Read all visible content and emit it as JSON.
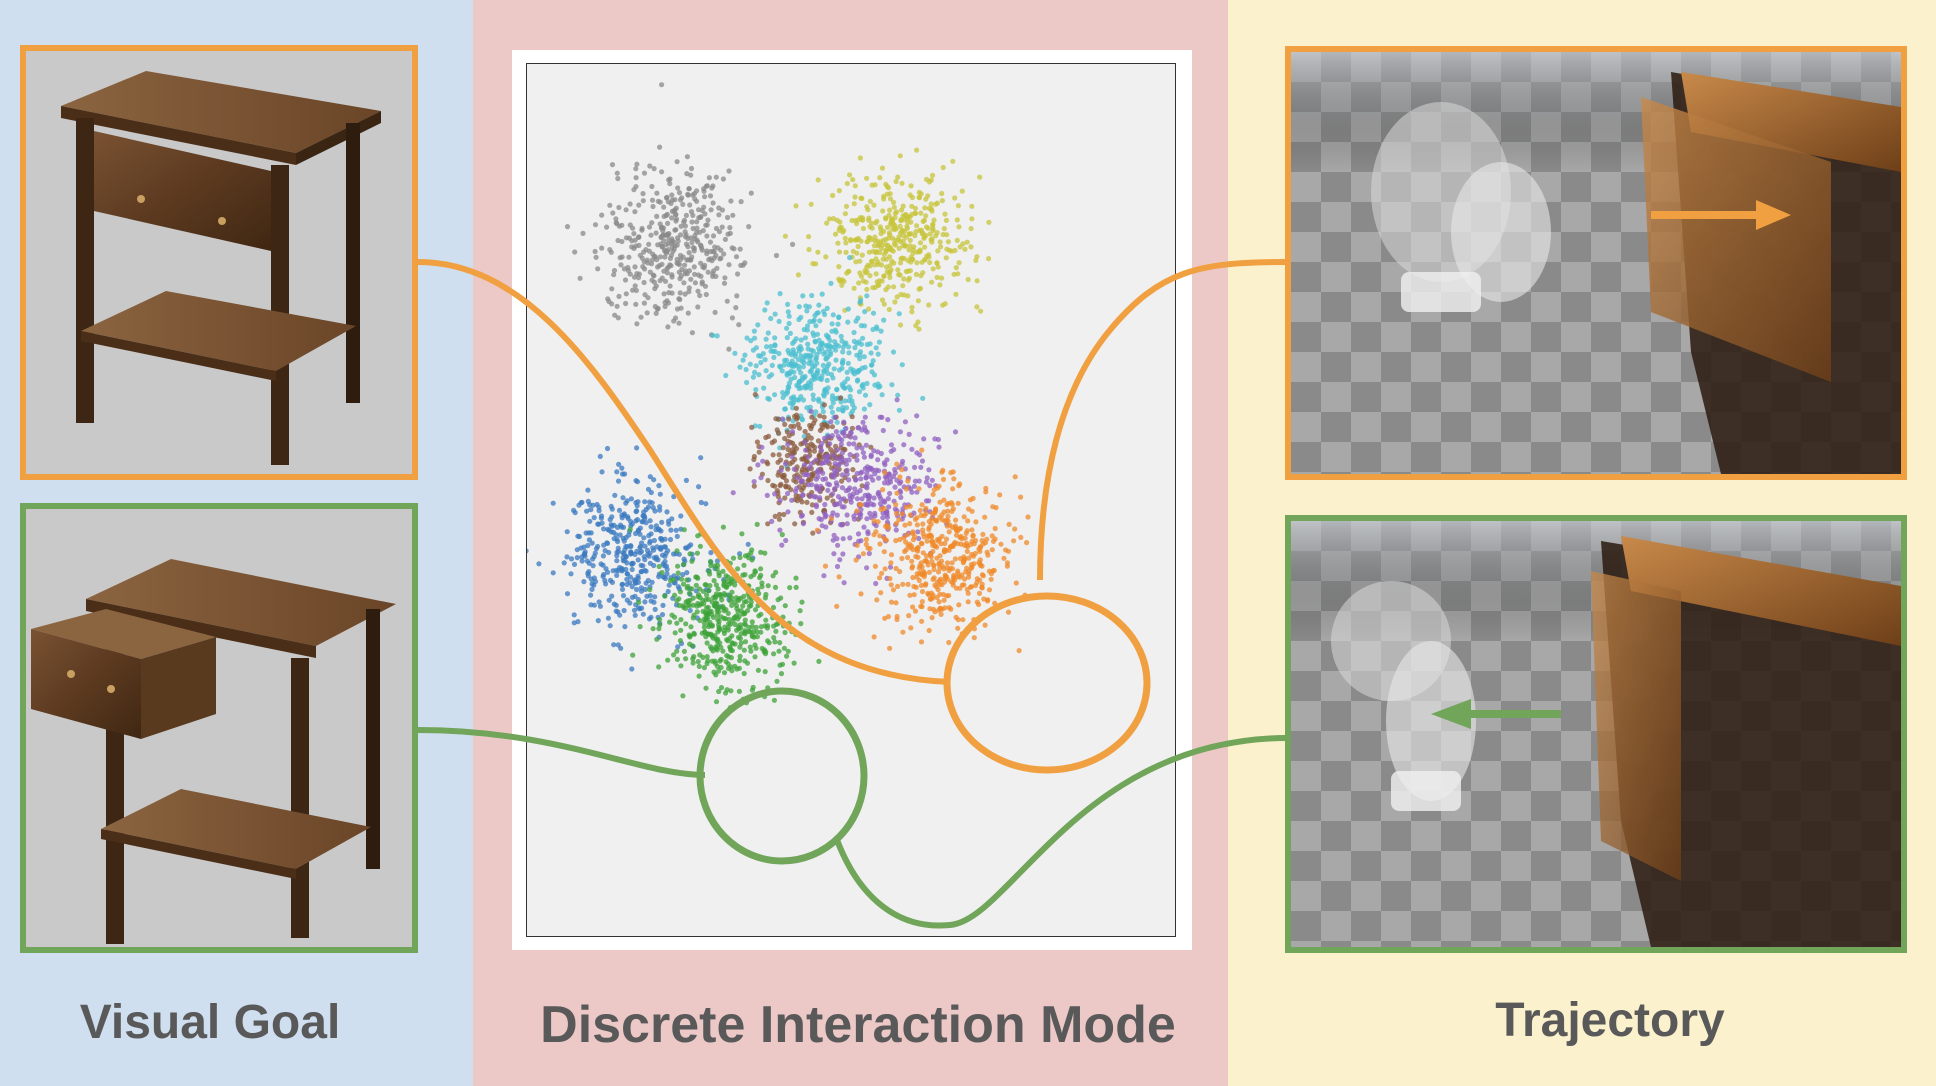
{
  "labels": {
    "visual_goal": "Visual Goal",
    "discrete_mode": "Discrete Interaction Mode",
    "trajectory": "Trajectory"
  },
  "colors": {
    "orange": "#f0a040",
    "green": "#70a55a",
    "left_bg": "#cfdfef",
    "mid_bg": "#ecc8c7",
    "right_bg": "#fbf1cd"
  },
  "clusters": [
    {
      "color": "#8a8a8a",
      "count": 420
    },
    {
      "color": "#c7c43a",
      "count": 420
    },
    {
      "color": "#4bbfd0",
      "count": 420
    },
    {
      "color": "#8c5c3f",
      "count": 240
    },
    {
      "color": "#9060c0",
      "count": 380
    },
    {
      "color": "#3a7ac0",
      "count": 420
    },
    {
      "color": "#f08a2a",
      "count": 460
    },
    {
      "color": "#3ea338",
      "count": 460
    }
  ]
}
